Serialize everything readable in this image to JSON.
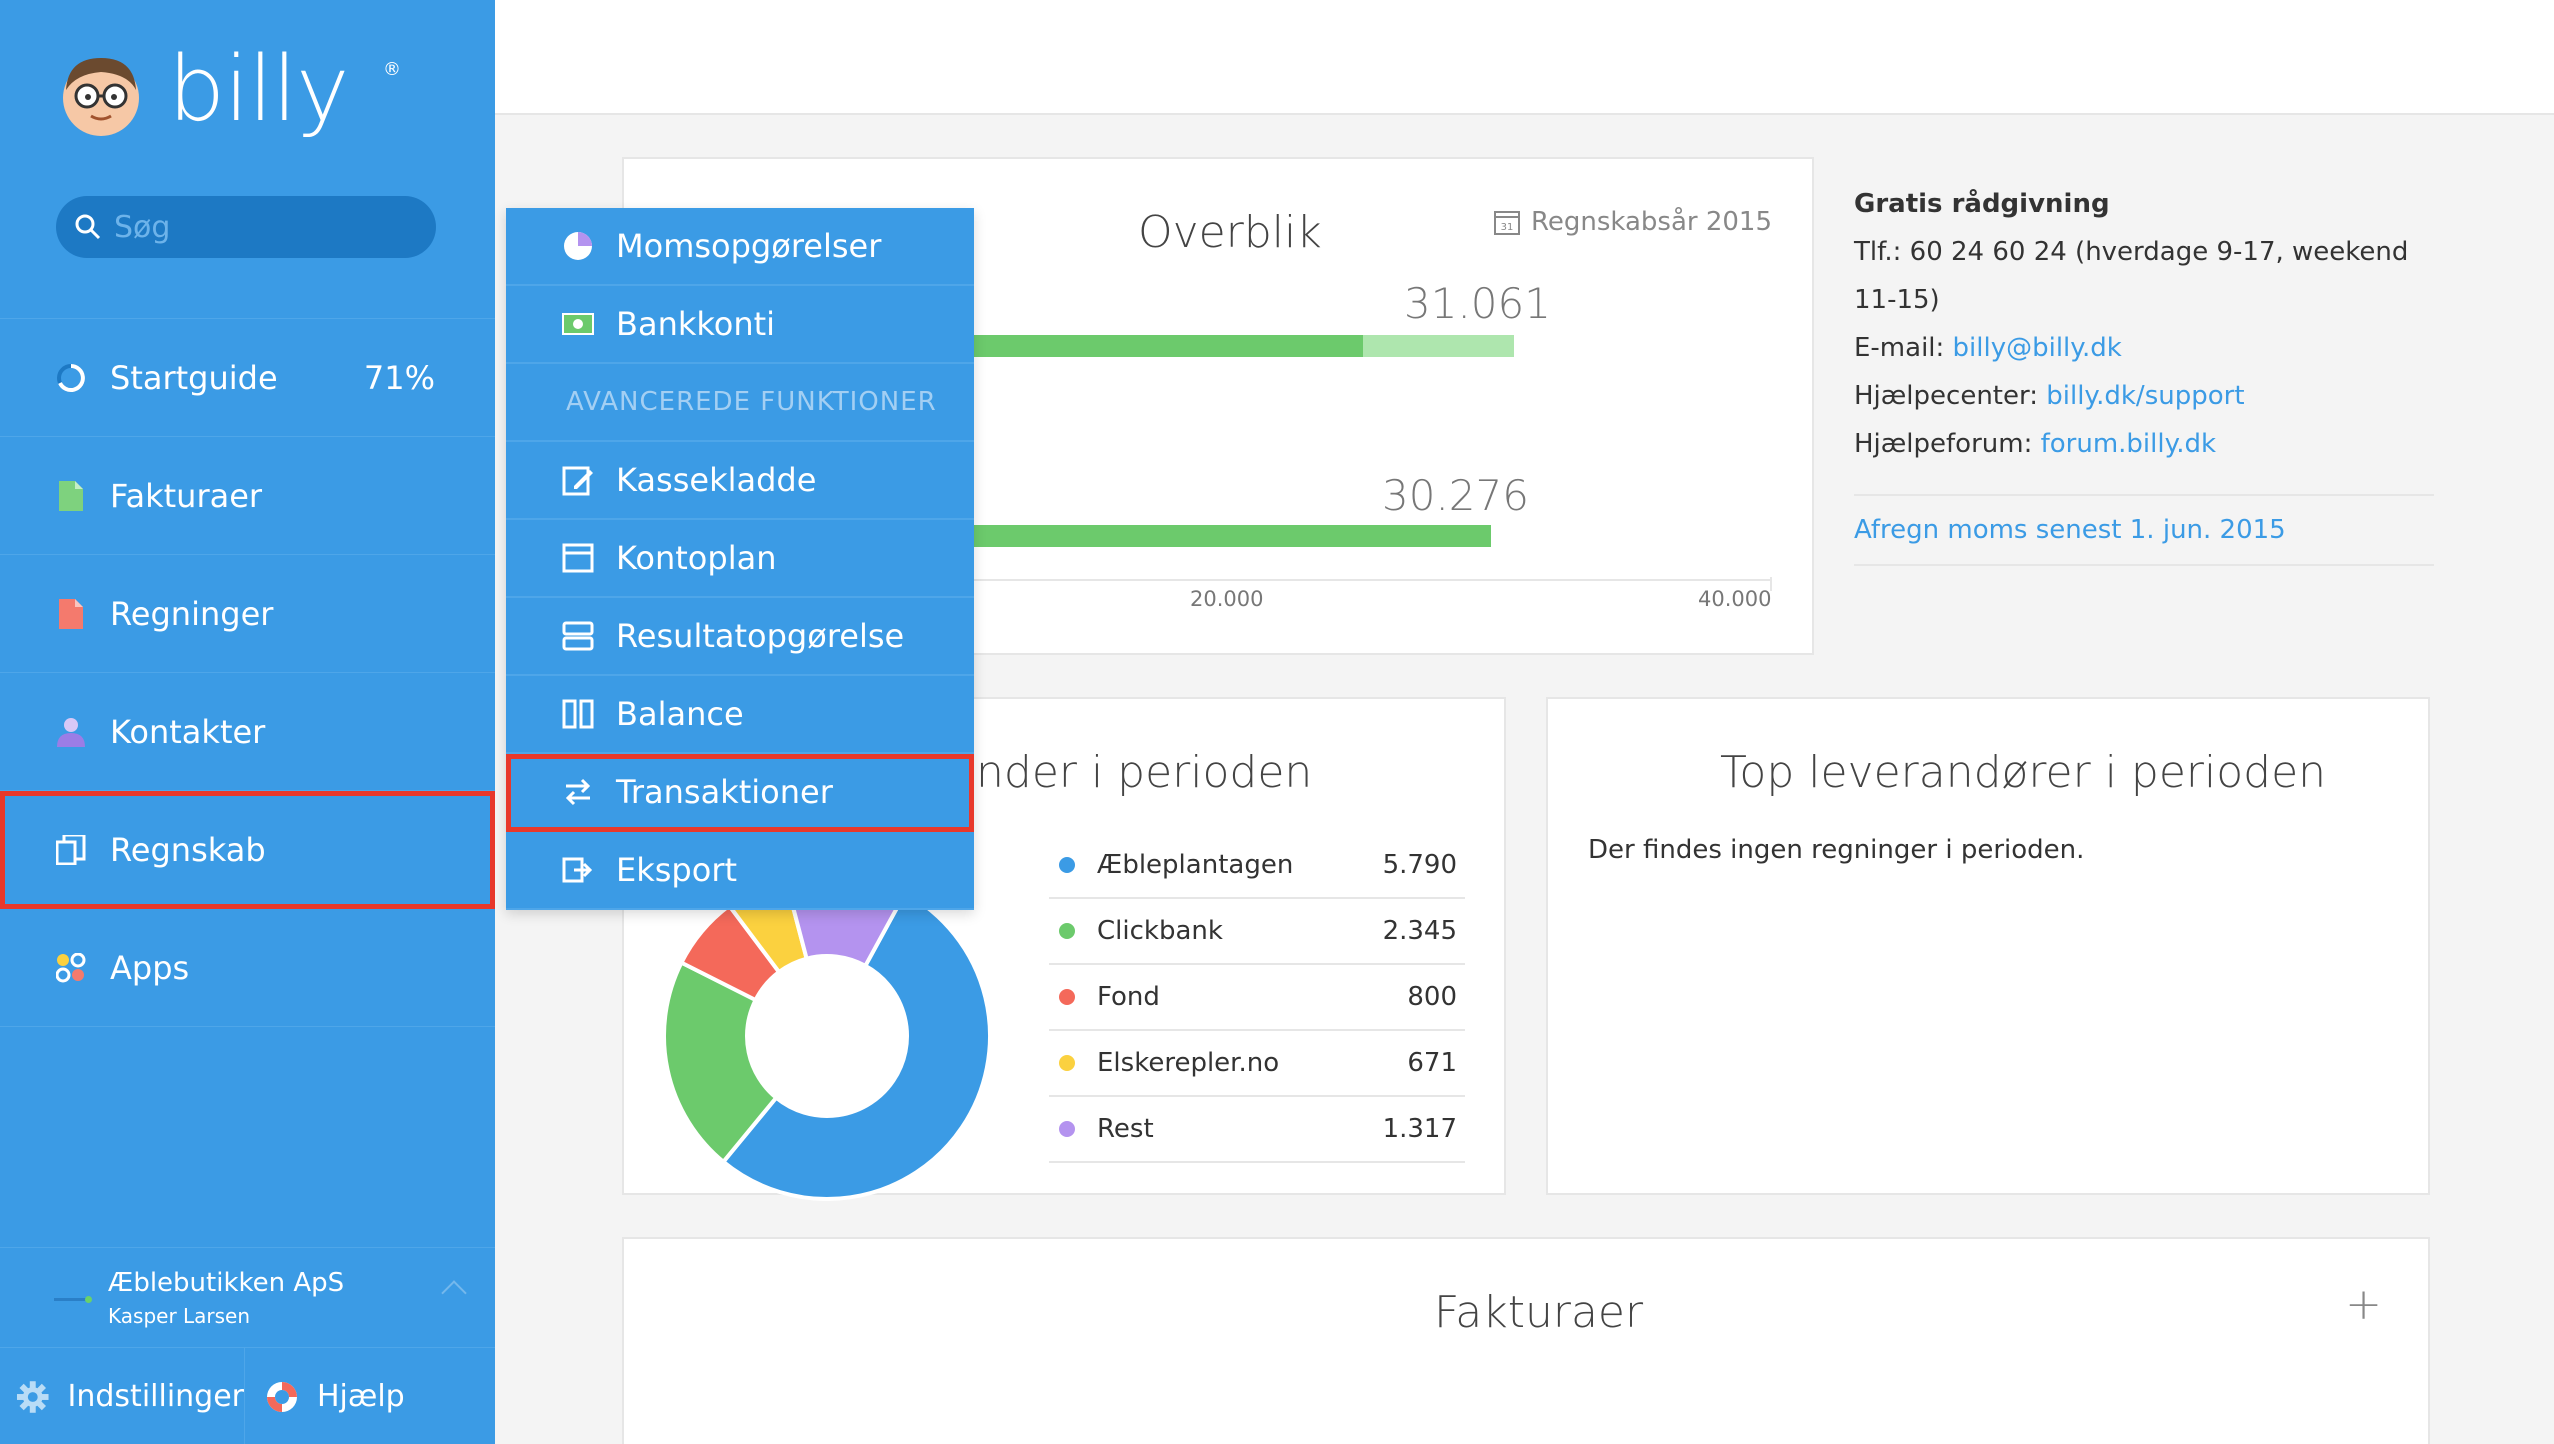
{
  "app": {
    "name": "billy",
    "reg": "®"
  },
  "search": {
    "placeholder": "Søg"
  },
  "nav": {
    "items": [
      {
        "label": "Startguide",
        "badge": "71%",
        "icon": "progress-ring-icon"
      },
      {
        "label": "Fakturaer",
        "icon": "invoice-document-icon",
        "color": "#7ed27e"
      },
      {
        "label": "Regninger",
        "icon": "bill-document-icon",
        "color": "#f47a6d"
      },
      {
        "label": "Kontakter",
        "icon": "person-icon",
        "color": "#b9a3f0"
      },
      {
        "label": "Regnskab",
        "icon": "ledger-icon"
      },
      {
        "label": "Apps",
        "icon": "apps-grid-icon"
      }
    ]
  },
  "company": {
    "name": "Æblebutikken ApS",
    "user": "Kasper Larsen"
  },
  "bottom": {
    "settings": "Indstillinger",
    "help": "Hjælp"
  },
  "dropdown": {
    "items_top": [
      {
        "label": "Momsopgørelser",
        "icon": "pie-chart-icon"
      },
      {
        "label": "Bankkonti",
        "icon": "bank-note-icon"
      }
    ],
    "header": "AVANCEREDE FUNKTIONER",
    "items_adv": [
      {
        "label": "Kassekladde",
        "icon": "edit-note-icon"
      },
      {
        "label": "Kontoplan",
        "icon": "chart-of-accounts-icon"
      },
      {
        "label": "Resultatopgørelse",
        "icon": "income-statement-icon"
      },
      {
        "label": "Balance",
        "icon": "balance-icon"
      },
      {
        "label": "Transaktioner",
        "icon": "transactions-icon"
      },
      {
        "label": "Eksport",
        "icon": "export-icon"
      }
    ]
  },
  "overview": {
    "title": "Overblik",
    "fiscal_year": "Regnskabsår 2015",
    "calendar_day": "31",
    "bar1_label": "31.061",
    "bar2_label": "30.276",
    "tick_20k": "20.000",
    "tick_40k": "40.000"
  },
  "chart_data": {
    "type": "bar",
    "orientation": "horizontal",
    "title": "Overblik",
    "values": [
      31061,
      30276
    ],
    "value_labels": [
      "31.061",
      "30.276"
    ],
    "xlim": [
      0,
      40000
    ],
    "x_ticks": [
      "20.000",
      "40.000"
    ]
  },
  "info": {
    "title": "Gratis rådgivning",
    "phone": "Tlf.: 60 24 60 24 (hverdage 9-17, weekend 11-15)",
    "email_label": "E-mail: ",
    "email": "billy@billy.dk",
    "helpcenter_label": "Hjælpecenter: ",
    "helpcenter": "billy.dk/support",
    "forum_label": "Hjælpeforum: ",
    "forum": "forum.billy.dk",
    "vat_notice": "Afregn moms senest 1. jun. 2015"
  },
  "customers": {
    "title_visible": "nder i perioden",
    "rows": [
      {
        "name": "Æbleplantagen",
        "value": "5.790",
        "color": "#3b9be5"
      },
      {
        "name": "Clickbank",
        "value": "2.345",
        "color": "#6cca6c"
      },
      {
        "name": "Fond",
        "value": "800",
        "color": "#f4695a"
      },
      {
        "name": "Elskerepler.no",
        "value": "671",
        "color": "#fbd13f"
      },
      {
        "name": "Rest",
        "value": "1.317",
        "color": "#b493ef"
      }
    ]
  },
  "suppliers": {
    "title": "Top leverandører i perioden",
    "empty": "Der findes ingen regninger i perioden."
  },
  "invoices": {
    "title": "Fakturaer",
    "add": "+"
  }
}
